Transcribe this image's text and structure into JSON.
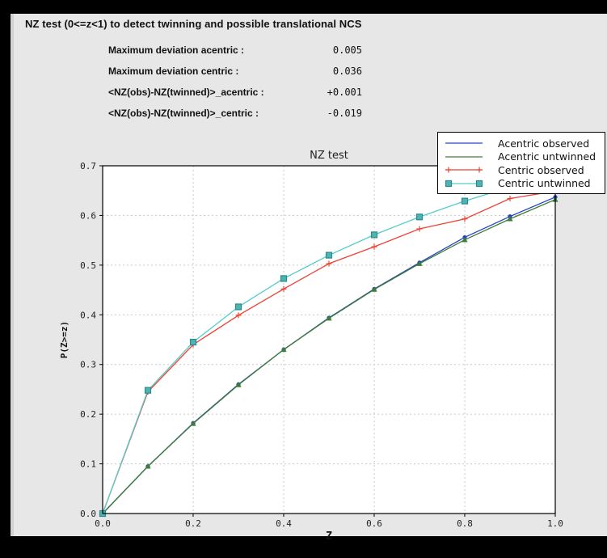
{
  "window": {
    "title": "NZ test (0<=z<1) to detect twinning and possible translational NCS"
  },
  "stats": [
    {
      "label": "Maximum deviation acentric :",
      "value": "0.005"
    },
    {
      "label": "Maximum deviation centric :",
      "value": "0.036"
    },
    {
      "label": "<NZ(obs)-NZ(twinned)>_acentric :",
      "value": "+0.001"
    },
    {
      "label": "<NZ(obs)-NZ(twinned)>_centric :",
      "value": "-0.019"
    }
  ],
  "colors": {
    "frame": "#000000",
    "panel_bg": "#e7e7e7",
    "plot_bg": "#ffffff",
    "grid": "#c9c9c9",
    "axis": "#000000"
  },
  "chart_data": {
    "type": "line",
    "title": "NZ test",
    "xlabel": "Z",
    "ylabel": "P(Z>=z)",
    "xlim": [
      0.0,
      1.0
    ],
    "ylim": [
      0.0,
      0.7
    ],
    "xticks": [
      0.0,
      0.2,
      0.4,
      0.6,
      0.8,
      1.0
    ],
    "yticks": [
      0.0,
      0.1,
      0.2,
      0.3,
      0.4,
      0.5,
      0.6,
      0.7
    ],
    "grid": true,
    "legend_position": "top-right",
    "x": [
      0.0,
      0.1,
      0.2,
      0.3,
      0.4,
      0.5,
      0.6,
      0.7,
      0.8,
      0.9,
      1.0
    ],
    "series": [
      {
        "name": "Acentric observed",
        "color": "#2743c3",
        "marker": "circle",
        "values": [
          0.0,
          0.095,
          0.182,
          0.26,
          0.33,
          0.394,
          0.452,
          0.505,
          0.556,
          0.598,
          0.637
        ]
      },
      {
        "name": "Acentric untwinned",
        "color": "#3e7d35",
        "marker": "triangle",
        "values": [
          0.0,
          0.095,
          0.181,
          0.259,
          0.33,
          0.393,
          0.451,
          0.503,
          0.551,
          0.593,
          0.632
        ]
      },
      {
        "name": "Centric observed",
        "color": "#ee4134",
        "marker": "plus",
        "values": [
          0.0,
          0.245,
          0.34,
          0.399,
          0.452,
          0.503,
          0.537,
          0.573,
          0.593,
          0.634,
          0.649
        ]
      },
      {
        "name": "Centric untwinned",
        "color": "#55cccc",
        "marker": "square",
        "marker_fill": "#4cb4b4",
        "marker_edge": "#2d8a8a",
        "values": [
          0.0,
          0.248,
          0.345,
          0.416,
          0.473,
          0.52,
          0.561,
          0.597,
          0.629,
          0.657,
          0.683
        ]
      }
    ]
  }
}
